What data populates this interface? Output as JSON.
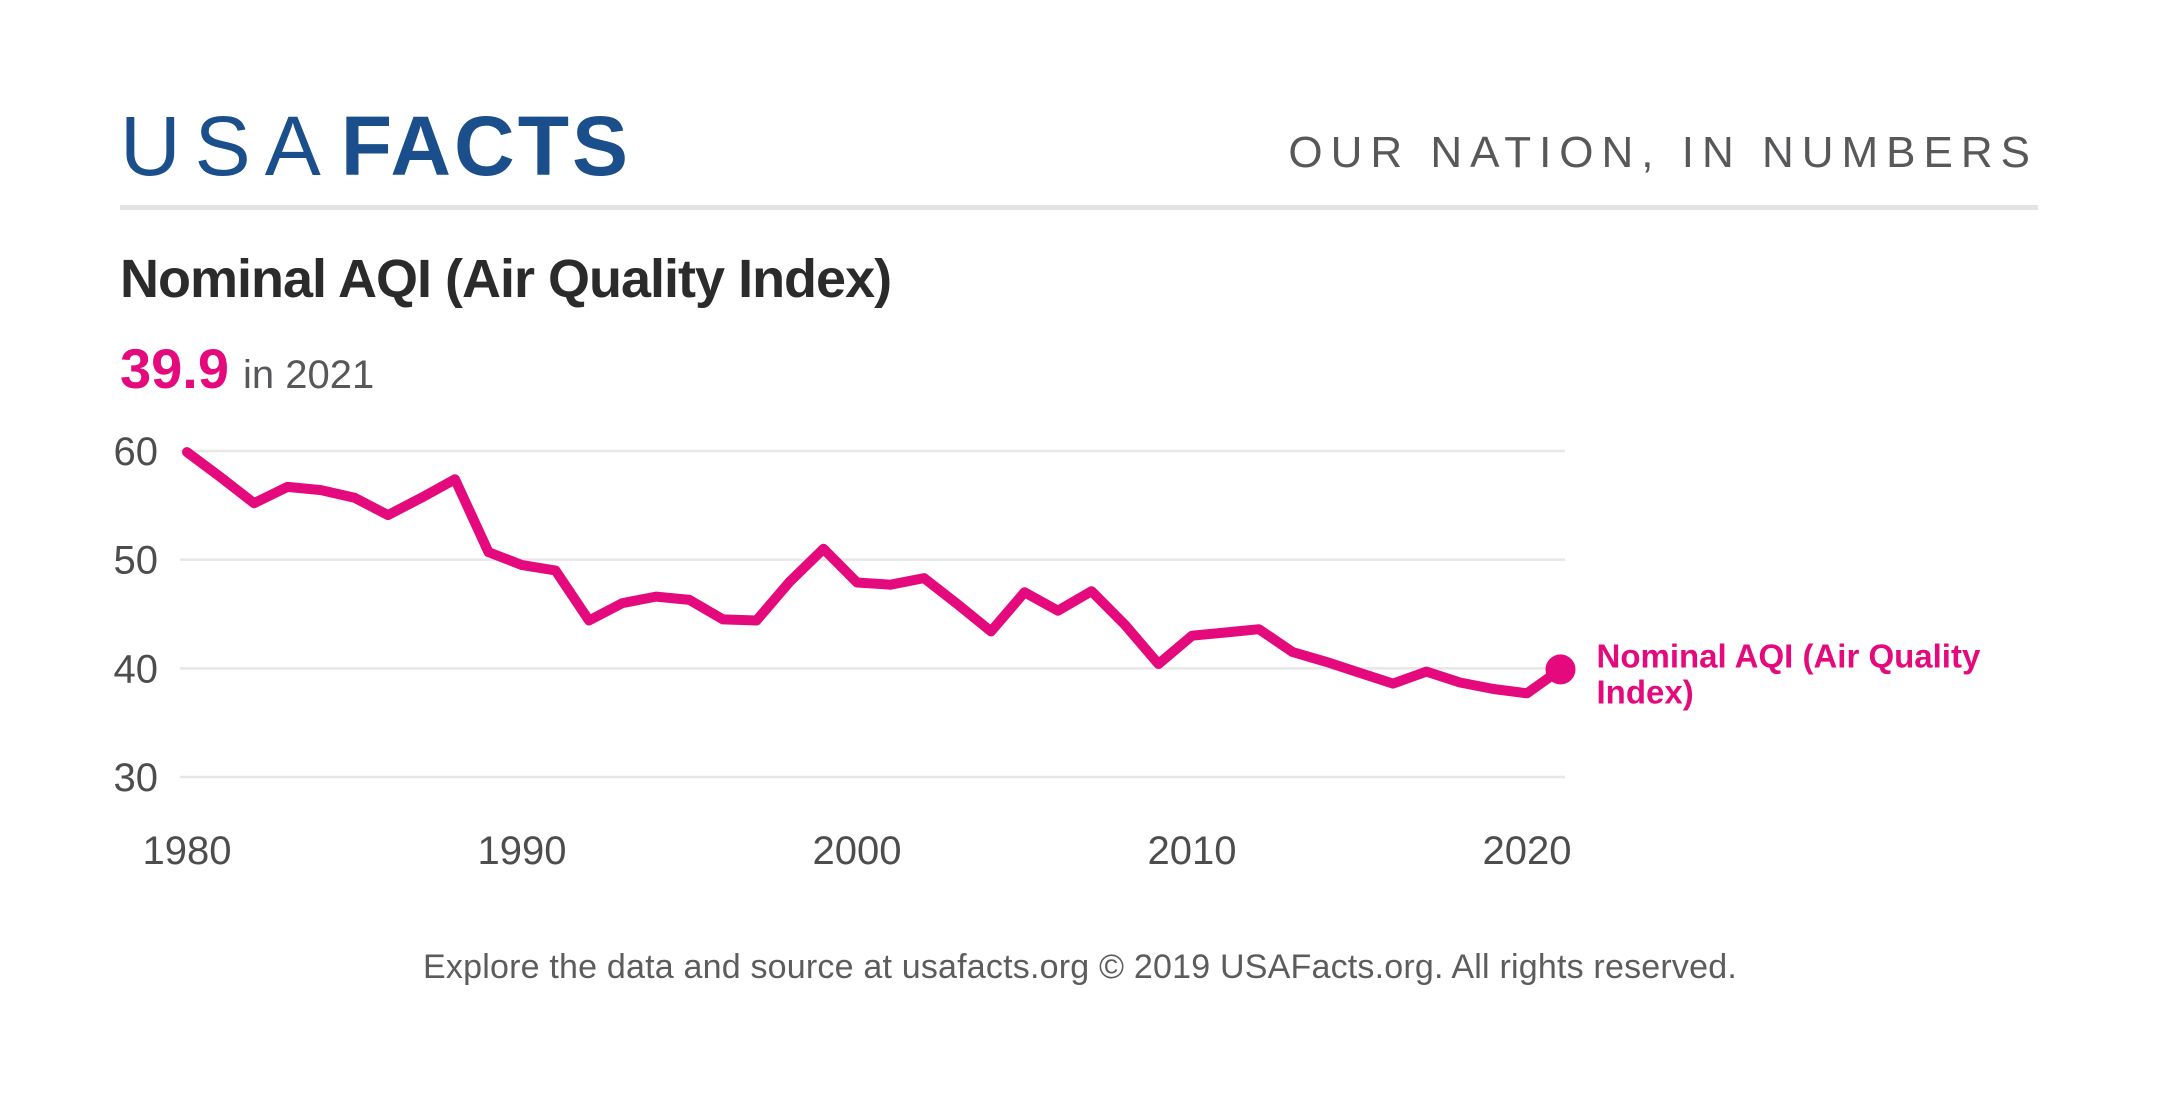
{
  "header": {
    "logo_usa": "USA",
    "logo_facts": "FACTS",
    "tagline": "OUR NATION, IN NUMBERS"
  },
  "title": "Nominal AQI (Air Quality Index)",
  "highlight": {
    "value": "39.9",
    "suffix": "in 2021"
  },
  "chart_data": {
    "type": "line",
    "title": "Nominal AQI (Air Quality Index)",
    "xlabel": "",
    "ylabel": "",
    "grid": true,
    "x": [
      1980,
      1981,
      1982,
      1983,
      1984,
      1985,
      1986,
      1987,
      1988,
      1989,
      1990,
      1991,
      1992,
      1993,
      1994,
      1995,
      1996,
      1997,
      1998,
      1999,
      2000,
      2001,
      2002,
      2003,
      2004,
      2005,
      2006,
      2007,
      2008,
      2009,
      2010,
      2011,
      2012,
      2013,
      2014,
      2015,
      2016,
      2017,
      2018,
      2019,
      2020,
      2021
    ],
    "series": [
      {
        "name": "Nominal AQI (Air Quality Index)",
        "values": [
          59.9,
          57.6,
          55.2,
          56.7,
          56.4,
          55.7,
          54.1,
          55.7,
          57.4,
          50.7,
          49.5,
          49.0,
          44.4,
          46.0,
          46.6,
          46.3,
          44.5,
          44.4,
          48.0,
          51.0,
          47.9,
          47.7,
          48.3,
          45.9,
          43.4,
          47.0,
          45.3,
          47.1,
          44.0,
          40.4,
          43.0,
          43.3,
          43.6,
          41.5,
          40.6,
          39.6,
          38.6,
          39.7,
          38.7,
          38.1,
          37.7,
          39.9
        ]
      }
    ],
    "x_ticks": [
      "1980",
      "1990",
      "2000",
      "2010",
      "2020"
    ],
    "x_tick_years": [
      1980,
      1990,
      2000,
      2010,
      2020
    ],
    "y_ticks": [
      "60",
      "50",
      "40",
      "30"
    ],
    "y_tick_values": [
      60,
      50,
      40,
      30
    ],
    "ylim": [
      30,
      60
    ],
    "xlim": [
      1980,
      2021
    ],
    "legend_lines": [
      "Nominal AQI (Air Quality",
      "Index)"
    ],
    "legend_position": "right-of-line-end",
    "end_point": {
      "year": 2021,
      "value": 39.9
    }
  },
  "footer": "Explore the data and source at usafacts.org © 2019 USAFacts.org. All rights reserved.",
  "colors": {
    "brand_blue": "#1b4f8c",
    "accent_pink": "#e40a7d",
    "grid": "#e7e7e7",
    "tick": "#4d4d4d",
    "muted": "#58585a",
    "title": "#2b2b2b",
    "divider": "#e3e3e3"
  }
}
